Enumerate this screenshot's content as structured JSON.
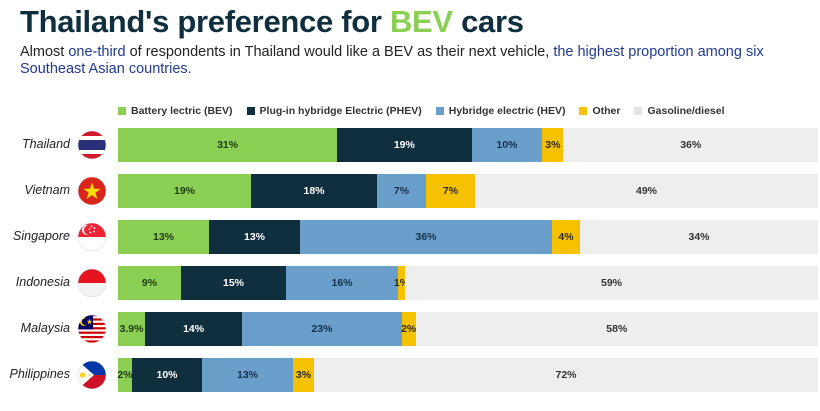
{
  "title": {
    "prefix": "Thailand's preference for ",
    "highlight": "BEV",
    "suffix": " cars"
  },
  "subtitle": {
    "part1": "Almost ",
    "highlight1": "one-third",
    "part2": " of respondents in Thailand would like a BEV as their next vehicle, ",
    "highlight2": "the highest proportion among six Southeast Asian countries."
  },
  "colors": {
    "bev": "#8bcf55",
    "phev": "#0f2f3f",
    "hev": "#6b9fcb",
    "other": "#f5c100",
    "gas": "#eeeeee",
    "highlight_green": "#8bcf55",
    "highlight_blue": "#203a8f"
  },
  "chart_data": {
    "type": "bar",
    "orientation": "horizontal",
    "stacked": true,
    "legend": "top",
    "categories": [
      "Thailand",
      "Vietnam",
      "Singapore",
      "Indonesia",
      "Malaysia",
      "Philippines"
    ],
    "series": [
      {
        "key": "bev",
        "name": "Battery lectric (BEV)",
        "values": [
          31,
          19,
          13,
          9,
          3.9,
          2
        ],
        "labels": [
          "31%",
          "19%",
          "13%",
          "9%",
          "3.9%",
          "2%"
        ]
      },
      {
        "key": "phev",
        "name": "Plug-in hybridge Electric (PHEV)",
        "values": [
          19,
          18,
          13,
          15,
          14,
          10
        ],
        "labels": [
          "19%",
          "18%",
          "13%",
          "15%",
          "14%",
          "10%"
        ]
      },
      {
        "key": "hev",
        "name": "Hybridge electric (HEV)",
        "values": [
          10,
          7,
          36,
          16,
          23,
          13
        ],
        "labels": [
          "10%",
          "7%",
          "36%",
          "16%",
          "23%",
          "13%"
        ]
      },
      {
        "key": "other",
        "name": "Other",
        "values": [
          3,
          7,
          4,
          1,
          2,
          3
        ],
        "labels": [
          "3%",
          "7%",
          "4%",
          "1%",
          "2%",
          "3%"
        ]
      },
      {
        "key": "gas",
        "name": "Gasoline/diesel",
        "values": [
          36,
          49,
          34,
          59,
          58,
          72
        ],
        "labels": [
          "36%",
          "49%",
          "34%",
          "59%",
          "58%",
          "72%"
        ]
      }
    ]
  }
}
